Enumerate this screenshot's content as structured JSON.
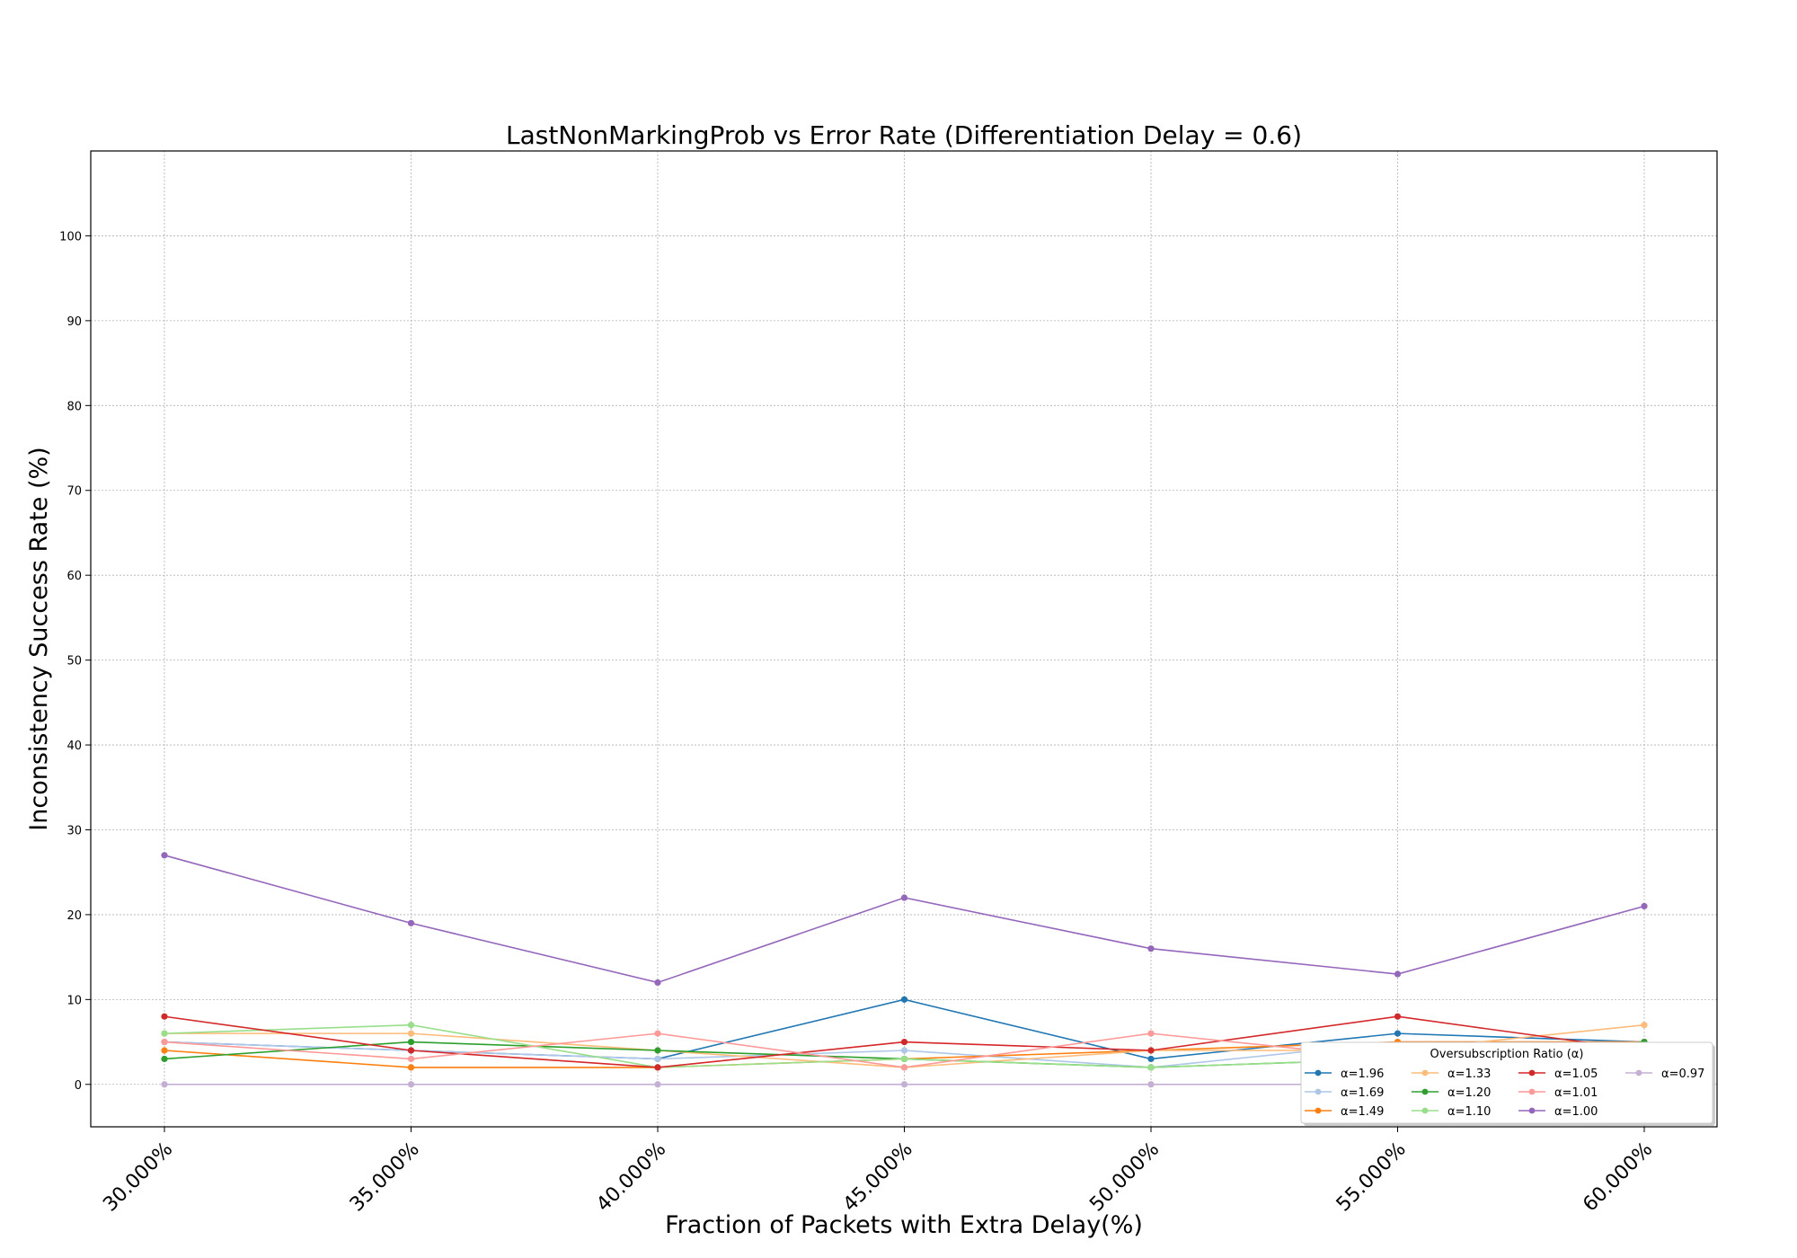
{
  "chart_data": {
    "type": "line",
    "title": "LastNonMarkingProb vs Error Rate (Differentiation Delay = 0.6)",
    "xlabel": "Fraction of Packets with Extra Delay(%)",
    "ylabel": "Inconsistency Success Rate (%)",
    "categories": [
      "30.000%",
      "35.000%",
      "40.000%",
      "45.000%",
      "50.000%",
      "55.000%",
      "60.000%"
    ],
    "ylim": [
      -5,
      110
    ],
    "yticks": [
      "0",
      "10",
      "20",
      "30",
      "40",
      "50",
      "60",
      "70",
      "80",
      "90",
      "100"
    ],
    "grid": true,
    "legend": {
      "title": "Oversubscription Ratio (α)",
      "placement": "lower-right"
    },
    "series": [
      {
        "name": "α=1.96",
        "color": "#1f77b4",
        "values": [
          5,
          4,
          3,
          10,
          3,
          6,
          5
        ]
      },
      {
        "name": "α=1.69",
        "color": "#aec7e8",
        "values": [
          5,
          4,
          3,
          4,
          2,
          5,
          5
        ]
      },
      {
        "name": "α=1.49",
        "color": "#ff7f0e",
        "values": [
          4,
          2,
          2,
          3,
          4,
          5,
          5
        ]
      },
      {
        "name": "α=1.33",
        "color": "#ffbb78",
        "values": [
          6,
          6,
          4,
          2,
          4,
          4,
          7
        ]
      },
      {
        "name": "α=1.20",
        "color": "#2ca02c",
        "values": [
          3,
          5,
          4,
          3,
          2,
          3,
          5
        ]
      },
      {
        "name": "α=1.10",
        "color": "#98df8a",
        "values": [
          6,
          7,
          2,
          3,
          2,
          3,
          4
        ]
      },
      {
        "name": "α=1.05",
        "color": "#d62728",
        "values": [
          8,
          4,
          2,
          5,
          4,
          8,
          4
        ]
      },
      {
        "name": "α=1.01",
        "color": "#ff9896",
        "values": [
          5,
          3,
          6,
          2,
          6,
          3,
          4
        ]
      },
      {
        "name": "α=1.00",
        "color": "#9467bd",
        "values": [
          27,
          19,
          12,
          22,
          16,
          13,
          21
        ]
      },
      {
        "name": "α=0.97",
        "color": "#c5b0d5",
        "values": [
          0,
          0,
          0,
          0,
          0,
          0,
          0
        ]
      }
    ]
  }
}
